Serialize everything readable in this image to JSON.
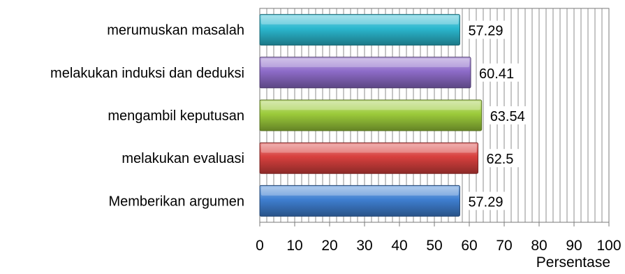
{
  "chart_data": {
    "type": "bar",
    "orientation": "horizontal",
    "categories": [
      "merumuskan masalah",
      "melakukan induksi dan deduksi",
      "mengambil keputusan",
      "melakukan evaluasi",
      "Memberikan argumen"
    ],
    "values": [
      57.29,
      60.41,
      63.54,
      62.5,
      57.29
    ],
    "value_labels": [
      "57.29",
      "60.41",
      "63.54",
      "62.5",
      "57.29"
    ],
    "colors": [
      "#2BB8CF",
      "#8E6CC9",
      "#9CCB3B",
      "#D8403E",
      "#3F7FD1"
    ],
    "xlim": [
      0,
      100
    ],
    "x_ticks": [
      "0",
      "10",
      "20",
      "30",
      "40",
      "50",
      "60",
      "70",
      "80",
      "90",
      "100"
    ],
    "xlabel": "Persentase",
    "grid": "vertical minor lines every 2 units"
  }
}
